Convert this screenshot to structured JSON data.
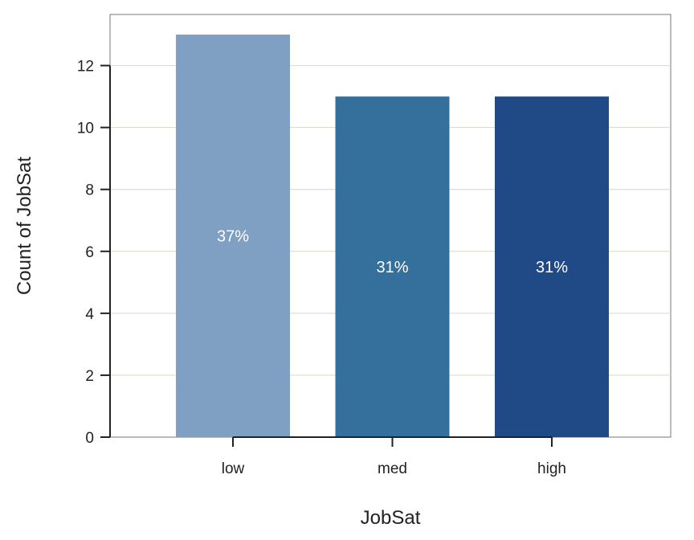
{
  "chart_data": {
    "type": "bar",
    "title": "",
    "xlabel": "JobSat",
    "ylabel": "Count of JobSat",
    "categories": [
      "low",
      "med",
      "high"
    ],
    "values": [
      13,
      11,
      11
    ],
    "data_labels": [
      "37%",
      "31%",
      "31%"
    ],
    "colors": [
      "#7f9fc3",
      "#35709d",
      "#1f4a86"
    ],
    "ylim": [
      0,
      13.65
    ],
    "yticks": [
      0,
      2,
      4,
      6,
      8,
      10,
      12
    ],
    "grid": true,
    "grid_color": "#d9d9c6"
  }
}
